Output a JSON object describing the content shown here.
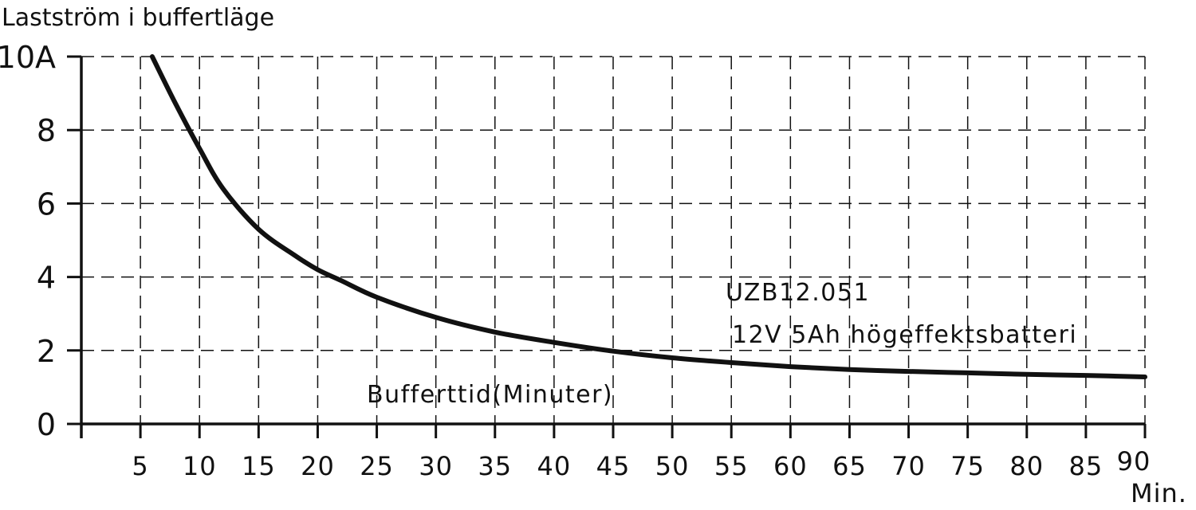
{
  "chart_data": {
    "type": "line",
    "title": "",
    "ylabel": "Lastström i buffertläge",
    "xlabel": "Min.",
    "xlim": [
      0,
      90
    ],
    "ylim": [
      0,
      10
    ],
    "x_ticks": [
      5,
      10,
      15,
      20,
      25,
      30,
      35,
      40,
      45,
      50,
      55,
      60,
      65,
      70,
      75,
      80,
      85,
      90
    ],
    "x_tick_labels": [
      "5",
      "10",
      "15",
      "20",
      "25",
      "30",
      "35",
      "40",
      "45",
      "50",
      "55",
      "60",
      "65",
      "70",
      "75",
      "80",
      "85",
      "90"
    ],
    "y_ticks": [
      0,
      2,
      4,
      6,
      8,
      10
    ],
    "y_tick_labels": [
      "0",
      "2",
      "4",
      "6",
      "8",
      "10A"
    ],
    "grid": true,
    "annotations": [
      "UZB12.051",
      "12V 5Ah högeffektsbatteri",
      "Bufferttid(Minuter)"
    ],
    "series": [
      {
        "x": [
          6,
          8,
          10,
          12,
          15,
          18,
          20,
          22,
          25,
          30,
          35,
          40,
          45,
          50,
          55,
          60,
          65,
          70,
          75,
          80,
          85,
          90
        ],
        "values": [
          10.0,
          8.7,
          7.5,
          6.4,
          5.3,
          4.6,
          4.2,
          3.9,
          3.45,
          2.9,
          2.5,
          2.22,
          1.98,
          1.8,
          1.67,
          1.56,
          1.48,
          1.43,
          1.39,
          1.35,
          1.32,
          1.28
        ]
      }
    ]
  }
}
